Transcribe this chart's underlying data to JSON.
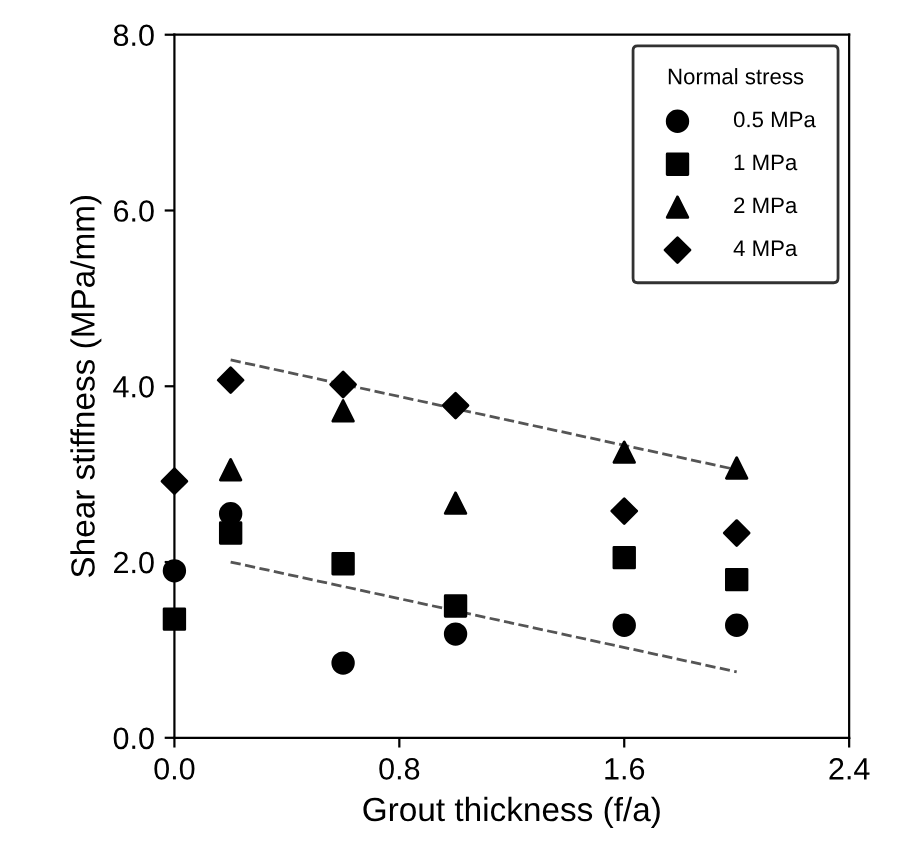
{
  "chart_data": {
    "type": "scatter",
    "xlabel": "Grout thickness (f/a)",
    "ylabel": "Shear stiffness (MPa/mm)",
    "legend_title": "Normal stress",
    "legend": "top right",
    "grid": false,
    "x": [
      0,
      0.2,
      0.6,
      1.0,
      1.6,
      2.0
    ],
    "xlim": [
      0,
      2.4
    ],
    "xticks": [
      {
        "value": 0,
        "label": "0.0"
      },
      {
        "value": 0.8,
        "label": "0.8"
      },
      {
        "value": 1.6,
        "label": "1.6"
      },
      {
        "value": 2.4,
        "label": "2.4"
      }
    ],
    "ylim": [
      0,
      8
    ],
    "yticks": [
      {
        "value": 0,
        "label": "0.0"
      },
      {
        "value": 2,
        "label": "2.0"
      },
      {
        "value": 4,
        "label": "4.0"
      },
      {
        "value": 6,
        "label": "6.0"
      },
      {
        "value": 8,
        "label": "8.0"
      }
    ],
    "series": [
      {
        "name": "0.5 MPa",
        "color": "#000000",
        "marker": "circle",
        "values": [
          1.9,
          2.55,
          0.85,
          1.18,
          1.28,
          1.28
        ]
      },
      {
        "name": "1 MPa",
        "color": "#000000",
        "marker": "square",
        "values": [
          1.35,
          2.33,
          1.98,
          1.5,
          2.05,
          1.8
        ]
      },
      {
        "name": "2 MPa",
        "color": "#000000",
        "marker": "triangle",
        "values": [
          null,
          3.05,
          3.72,
          2.67,
          3.25,
          3.07
        ]
      },
      {
        "name": "4 MPa",
        "color": "#000000",
        "marker": "diamond",
        "values": [
          2.92,
          4.07,
          4.02,
          3.78,
          2.58,
          2.33
        ]
      },
      {
        "type": "line",
        "color": "#555555",
        "line_style": "dashed",
        "marker": "none",
        "values": [
          null,
          4.3,
          null,
          null,
          null,
          3.05
        ]
      },
      {
        "type": "line",
        "color": "#555555",
        "line_style": "dashed",
        "marker": "none",
        "values": [
          null,
          2.0,
          null,
          null,
          null,
          0.75
        ]
      }
    ]
  }
}
